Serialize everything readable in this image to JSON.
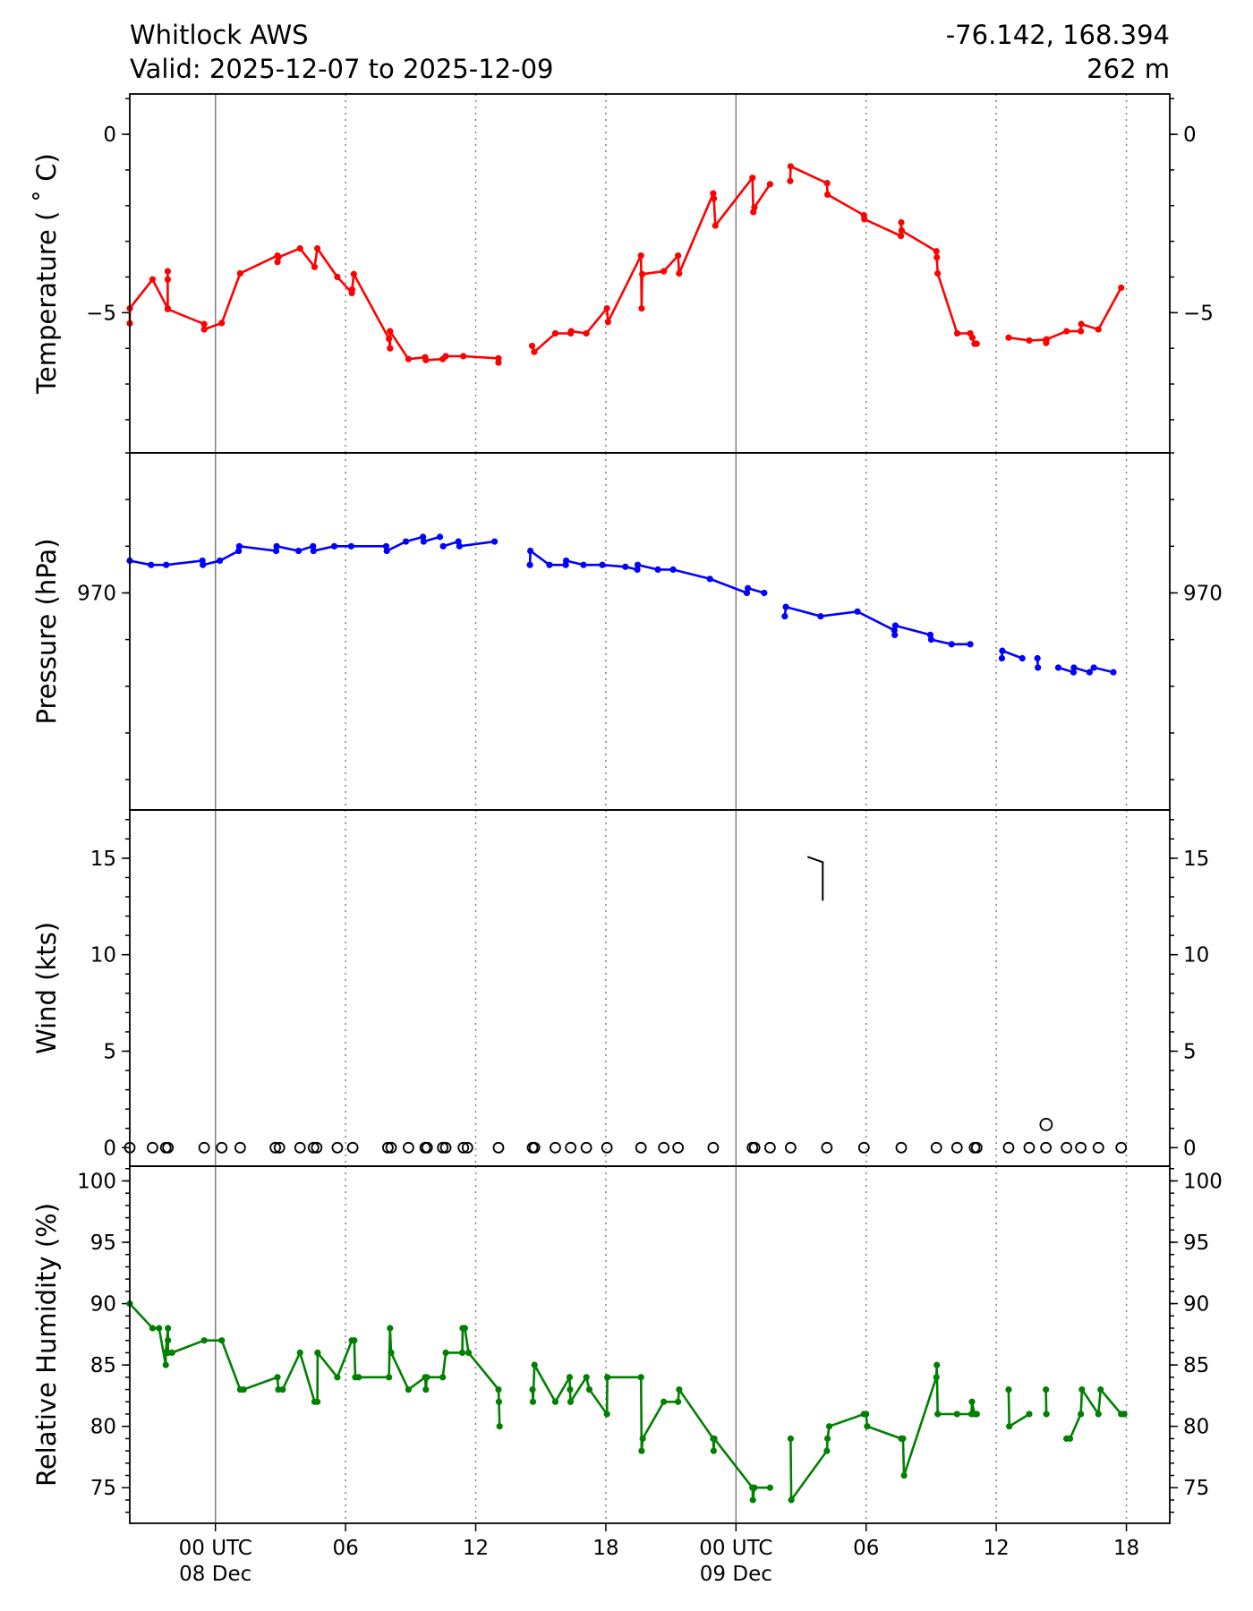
{
  "header": {
    "station": "Whitlock AWS",
    "valid": "Valid: 2025-12-07 to 2025-12-09",
    "coords": "-76.142, 168.394",
    "elevation": "262 m"
  },
  "chart_data": [
    {
      "type": "line",
      "panel": "temperature",
      "ylabel": "Temperature ($^\\circ$C)",
      "ylabel_display": "Temperature ( ˚ C)",
      "ylim": [
        -8.93,
        1.13
      ],
      "major_ticks": [
        0,
        -5
      ],
      "tick_labels": [
        "0",
        "−5"
      ],
      "minor_step": 1,
      "color": "#ff0000",
      "x_units": "hours since 2025-12-08 00 UTC",
      "points": [
        [
          -3.95,
          -5.3
        ],
        [
          -3.95,
          -4.88
        ],
        [
          -2.9,
          -4.07
        ],
        [
          -2.2,
          -4.88
        ],
        [
          -2.2,
          -4.07
        ],
        [
          -2.2,
          -3.84
        ],
        [
          -2.2,
          -4.9
        ],
        [
          -0.52,
          -5.32
        ],
        [
          -0.52,
          -5.47
        ],
        [
          0.29,
          -5.29
        ],
        [
          1.14,
          -3.9
        ],
        [
          2.86,
          -3.4
        ],
        [
          2.86,
          -3.58
        ],
        [
          2.9,
          -3.45
        ],
        [
          3.9,
          -3.2
        ],
        [
          4.57,
          -3.72
        ],
        [
          4.7,
          -3.2
        ],
        [
          5.62,
          -4.0
        ],
        [
          6.29,
          -4.45
        ],
        [
          6.3,
          -4.35
        ],
        [
          6.38,
          -3.92
        ],
        [
          8.0,
          -5.73
        ],
        [
          8.05,
          -6.0
        ],
        [
          8.05,
          -5.52
        ],
        [
          8.9,
          -6.3
        ],
        [
          9.67,
          -6.25
        ],
        [
          9.7,
          -6.33
        ],
        [
          10.48,
          -6.3
        ],
        [
          10.62,
          -6.22
        ],
        [
          11.43,
          -6.22
        ],
        [
          13.05,
          -6.28
        ],
        [
          13.05,
          -6.4
        ],
        null,
        [
          14.6,
          -5.93
        ],
        [
          14.7,
          -6.1
        ],
        [
          15.67,
          -5.58
        ],
        [
          16.38,
          -5.58
        ],
        [
          16.4,
          -5.52
        ],
        [
          17.1,
          -5.58
        ],
        [
          18.05,
          -4.88
        ],
        [
          18.1,
          -5.26
        ],
        [
          19.62,
          -3.4
        ],
        [
          19.65,
          -4.88
        ],
        [
          19.68,
          -3.92
        ],
        [
          20.67,
          -3.84
        ],
        [
          21.33,
          -3.4
        ],
        [
          21.38,
          -3.9
        ],
        [
          22.95,
          -1.66
        ],
        [
          22.98,
          -1.8
        ],
        [
          23.05,
          -2.56
        ],
        [
          24.76,
          -1.22
        ],
        [
          24.8,
          -2.18
        ],
        [
          24.85,
          -2.05
        ],
        [
          25.57,
          -1.4
        ],
        null,
        [
          26.5,
          -1.31
        ],
        [
          26.52,
          -0.9
        ],
        [
          28.2,
          -1.37
        ],
        [
          28.22,
          -1.69
        ],
        [
          29.9,
          -2.27
        ],
        [
          29.92,
          -2.38
        ],
        [
          31.6,
          -2.85
        ],
        [
          31.62,
          -2.47
        ],
        [
          31.64,
          -2.7
        ],
        [
          33.24,
          -3.28
        ],
        [
          33.26,
          -3.45
        ],
        [
          33.3,
          -3.9
        ],
        [
          34.2,
          -5.58
        ],
        [
          34.8,
          -5.58
        ],
        [
          34.9,
          -5.7
        ],
        [
          35.0,
          -5.87
        ],
        [
          35.1,
          -5.87
        ],
        null,
        [
          36.57,
          -5.7
        ],
        [
          37.52,
          -5.78
        ],
        [
          38.29,
          -5.76
        ],
        [
          38.3,
          -5.85
        ],
        [
          38.32,
          -5.75
        ],
        [
          39.24,
          -5.52
        ],
        [
          39.9,
          -5.52
        ],
        [
          39.92,
          -5.32
        ],
        [
          40.71,
          -5.47
        ],
        [
          41.76,
          -4.3
        ]
      ]
    },
    {
      "type": "line",
      "panel": "pressure",
      "ylabel": "Pressure (hPa)",
      "ylim": [
        965.35,
        973.0
      ],
      "major_ticks": [
        970
      ],
      "tick_labels": [
        "970"
      ],
      "minor_step": 1,
      "color": "#0000ff",
      "x_units": "hours since 2025-12-08 00 UTC",
      "points": [
        [
          -3.95,
          970.69
        ],
        [
          -2.97,
          970.6
        ],
        [
          -2.27,
          970.6
        ],
        [
          -0.6,
          970.69
        ],
        [
          -0.58,
          970.6
        ],
        [
          0.2,
          970.69
        ],
        [
          1.07,
          970.9
        ],
        [
          1.1,
          971.0
        ],
        [
          2.8,
          970.9
        ],
        [
          2.82,
          971.0
        ],
        [
          3.83,
          970.9
        ],
        [
          4.5,
          971.0
        ],
        [
          4.52,
          970.9
        ],
        [
          5.48,
          971.0
        ],
        [
          6.26,
          971.0
        ],
        [
          7.87,
          971.0
        ],
        [
          7.9,
          970.9
        ],
        [
          8.78,
          971.1
        ],
        [
          9.57,
          971.2
        ],
        [
          9.6,
          971.1
        ],
        [
          10.35,
          971.2
        ],
        null,
        [
          10.5,
          971.0
        ],
        [
          11.2,
          971.1
        ],
        [
          11.25,
          971.0
        ],
        [
          12.87,
          971.1
        ],
        null,
        [
          14.5,
          970.6
        ],
        [
          14.52,
          970.9
        ],
        [
          15.4,
          970.6
        ],
        [
          16.15,
          970.6
        ],
        [
          16.17,
          970.69
        ],
        [
          16.97,
          970.6
        ],
        [
          17.84,
          970.6
        ],
        [
          18.9,
          970.56
        ],
        [
          19.45,
          970.5
        ],
        [
          19.47,
          970.6
        ],
        [
          20.4,
          970.5
        ],
        [
          21.1,
          970.5
        ],
        [
          22.8,
          970.3
        ],
        [
          24.5,
          970.0
        ],
        [
          24.55,
          970.1
        ],
        [
          25.3,
          970.0
        ],
        null,
        [
          26.25,
          969.5
        ],
        [
          26.3,
          969.7
        ],
        [
          27.9,
          969.5
        ],
        [
          29.6,
          969.6
        ],
        [
          31.3,
          969.2
        ],
        [
          31.32,
          969.1
        ],
        [
          31.35,
          969.3
        ],
        [
          32.96,
          969.1
        ],
        [
          33.0,
          969.0
        ],
        [
          33.94,
          968.9
        ],
        [
          34.8,
          968.9
        ],
        null,
        [
          36.26,
          968.6
        ],
        [
          36.28,
          968.76
        ],
        [
          37.2,
          968.6
        ],
        null,
        [
          37.9,
          968.6
        ],
        [
          37.92,
          968.4
        ],
        null,
        [
          38.86,
          968.4
        ],
        [
          39.56,
          968.3
        ],
        [
          39.58,
          968.4
        ],
        [
          40.3,
          968.3
        ],
        [
          40.5,
          968.4
        ],
        [
          41.4,
          968.3
        ]
      ]
    },
    {
      "type": "scatter",
      "panel": "wind",
      "ylabel": "Wind (kts)",
      "ylim": [
        -0.96,
        17.5
      ],
      "major_ticks": [
        0,
        5,
        10,
        15
      ],
      "tick_labels": [
        "0",
        "5",
        "10",
        "15"
      ],
      "minor_step": 1,
      "x_units": "hours since 2025-12-08 00 UTC",
      "calm_times": [
        -3.95,
        -2.9,
        -2.29,
        -2.19,
        -0.52,
        0.29,
        1.14,
        2.76,
        2.95,
        3.9,
        4.52,
        4.67,
        5.62,
        6.33,
        7.95,
        8.1,
        8.9,
        9.67,
        9.76,
        10.48,
        10.62,
        11.43,
        11.62,
        13.05,
        14.62,
        14.71,
        15.67,
        16.38,
        17.1,
        18.05,
        19.62,
        20.67,
        21.33,
        22.95,
        24.76,
        24.86,
        25.57,
        26.52,
        28.19,
        29.9,
        31.62,
        33.24,
        34.19,
        35.0,
        35.1,
        36.57,
        37.52,
        38.29,
        39.24,
        39.9,
        40.71,
        41.76
      ],
      "light_wind": [
        {
          "time": 38.3,
          "speed_kts": 1.2
        }
      ],
      "barbs": [
        {
          "time": 28.0,
          "speed_kts": 12.8,
          "barb_kts": 10
        }
      ]
    },
    {
      "type": "line",
      "panel": "relative_humidity",
      "ylabel": "Relative Humidity (%)",
      "ylim": [
        72.1,
        101.2
      ],
      "major_ticks": [
        75,
        80,
        85,
        90,
        95,
        100
      ],
      "tick_labels": [
        "75",
        "80",
        "85",
        "90",
        "95",
        "100"
      ],
      "minor_step": 1,
      "color": "#008000",
      "x_units": "hours since 2025-12-08 00 UTC",
      "points": [
        [
          -3.95,
          90
        ],
        [
          -2.9,
          88
        ],
        [
          -2.6,
          88
        ],
        [
          -2.29,
          85
        ],
        [
          -2.29,
          86
        ],
        [
          -2.19,
          88
        ],
        [
          -2.19,
          87
        ],
        [
          -2.19,
          86
        ],
        [
          -2.0,
          86
        ],
        [
          -0.52,
          87
        ],
        [
          0.29,
          87
        ],
        [
          1.14,
          83
        ],
        [
          1.3,
          83
        ],
        [
          2.86,
          84
        ],
        [
          2.9,
          83
        ],
        [
          3.1,
          83
        ],
        [
          3.9,
          86
        ],
        [
          4.57,
          82
        ],
        [
          4.7,
          82
        ],
        [
          4.71,
          86
        ],
        [
          5.62,
          84
        ],
        [
          6.29,
          87
        ],
        [
          6.4,
          87
        ],
        [
          6.45,
          84
        ],
        [
          6.6,
          84
        ],
        [
          8.0,
          84
        ],
        [
          8.05,
          88
        ],
        [
          8.1,
          86
        ],
        [
          8.9,
          83
        ],
        [
          9.67,
          84
        ],
        [
          9.7,
          83
        ],
        [
          9.75,
          84
        ],
        [
          10.48,
          84
        ],
        [
          10.62,
          86
        ],
        [
          11.38,
          86
        ],
        [
          11.4,
          88
        ],
        [
          11.5,
          88
        ],
        [
          11.67,
          86
        ],
        [
          13.05,
          83
        ],
        [
          13.07,
          82
        ],
        [
          13.1,
          80
        ],
        null,
        [
          14.62,
          83
        ],
        [
          14.64,
          82
        ],
        [
          14.71,
          85
        ],
        [
          15.67,
          82
        ],
        [
          16.33,
          84
        ],
        [
          16.35,
          83
        ],
        [
          16.37,
          82
        ],
        [
          17.1,
          84
        ],
        [
          17.24,
          83
        ],
        [
          18.05,
          81
        ],
        [
          18.07,
          84
        ],
        [
          19.62,
          84
        ],
        [
          19.65,
          78
        ],
        [
          19.7,
          79
        ],
        [
          20.67,
          82
        ],
        [
          21.33,
          82
        ],
        [
          21.38,
          83
        ],
        [
          22.95,
          79
        ],
        [
          22.97,
          78
        ],
        [
          23.0,
          79
        ],
        [
          24.76,
          75
        ],
        [
          24.78,
          74
        ],
        [
          24.85,
          75
        ],
        [
          25.57,
          75
        ],
        null,
        [
          26.52,
          79
        ],
        [
          26.55,
          74
        ],
        [
          28.19,
          78
        ],
        [
          28.22,
          79
        ],
        [
          28.3,
          80
        ],
        [
          29.9,
          81
        ],
        [
          30.0,
          81
        ],
        [
          30.05,
          80
        ],
        [
          31.62,
          79
        ],
        [
          31.7,
          79
        ],
        [
          31.75,
          76
        ],
        [
          33.24,
          84
        ],
        [
          33.26,
          85
        ],
        [
          33.3,
          81
        ],
        [
          34.19,
          81
        ],
        [
          34.86,
          81
        ],
        [
          34.88,
          82
        ],
        [
          35.0,
          81
        ],
        [
          35.1,
          81
        ],
        null,
        [
          36.57,
          83
        ],
        [
          36.6,
          80
        ],
        [
          37.52,
          81
        ],
        null,
        [
          38.29,
          83
        ],
        [
          38.31,
          81
        ],
        null,
        [
          39.24,
          79
        ],
        [
          39.4,
          79
        ],
        [
          39.9,
          81
        ],
        [
          39.95,
          83
        ],
        [
          40.71,
          81
        ],
        [
          40.81,
          83
        ],
        [
          41.76,
          81
        ],
        [
          41.9,
          81
        ]
      ]
    }
  ],
  "x_axis": {
    "ticks": [
      {
        "hour": 0,
        "label": "00 UTC",
        "sublabel": "08 Dec",
        "major": true
      },
      {
        "hour": 6,
        "label": "06",
        "sublabel": "",
        "major": false
      },
      {
        "hour": 12,
        "label": "12",
        "sublabel": "",
        "major": false
      },
      {
        "hour": 18,
        "label": "18",
        "sublabel": "",
        "major": false
      },
      {
        "hour": 24,
        "label": "00 UTC",
        "sublabel": "09 Dec",
        "major": true
      },
      {
        "hour": 30,
        "label": "06",
        "sublabel": "",
        "major": false
      },
      {
        "hour": 36,
        "label": "12",
        "sublabel": "",
        "major": false
      },
      {
        "hour": 42,
        "label": "18",
        "sublabel": "",
        "major": false
      }
    ],
    "xlim_hours": [
      -3.95,
      44.0
    ]
  }
}
